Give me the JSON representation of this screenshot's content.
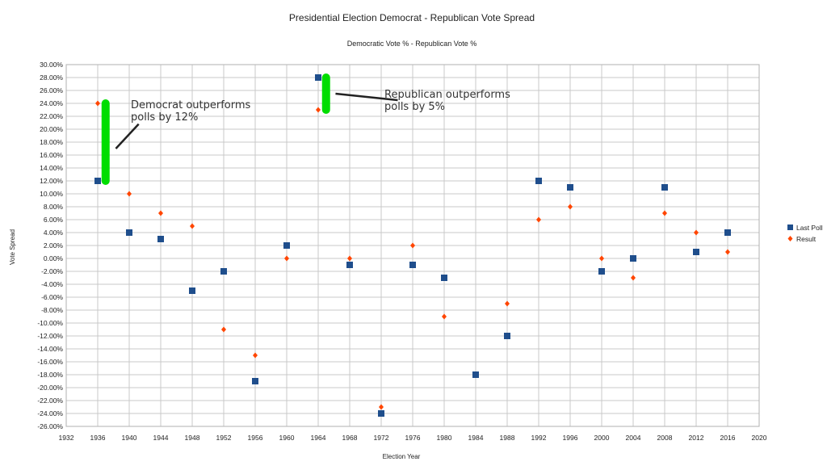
{
  "chart_data": {
    "type": "scatter",
    "title": "Presidential Election Democrat - Republican Vote Spread",
    "subtitle": "Democratic Vote % - Republican Vote %",
    "xlabel": "Election Year",
    "ylabel": "Vote Spread",
    "xlim": [
      1932,
      2020
    ],
    "xticks": [
      "1932",
      "1936",
      "1940",
      "1944",
      "1948",
      "1952",
      "1956",
      "1960",
      "1964",
      "1968",
      "1972",
      "1976",
      "1980",
      "1984",
      "1988",
      "1992",
      "1996",
      "2000",
      "2004",
      "2008",
      "2012",
      "2016",
      "2020"
    ],
    "ylim": [
      -26,
      30
    ],
    "yticks": [
      "30.00%",
      "28.00%",
      "26.00%",
      "24.00%",
      "22.00%",
      "20.00%",
      "18.00%",
      "16.00%",
      "14.00%",
      "12.00%",
      "10.00%",
      "8.00%",
      "6.00%",
      "4.00%",
      "2.00%",
      "0.00%",
      "-2.00%",
      "-4.00%",
      "-6.00%",
      "-8.00%",
      "-10.00%",
      "-12.00%",
      "-14.00%",
      "-16.00%",
      "-18.00%",
      "-20.00%",
      "-22.00%",
      "-24.00%",
      "-26.00%"
    ],
    "grid": true,
    "legend_position": "right",
    "x": [
      1936,
      1940,
      1944,
      1948,
      1952,
      1956,
      1960,
      1964,
      1968,
      1972,
      1976,
      1980,
      1984,
      1988,
      1992,
      1996,
      2000,
      2004,
      2008,
      2012,
      2016
    ],
    "series": [
      {
        "name": "Last Poll",
        "color": "#1f4e8c",
        "marker": "square",
        "values": [
          12,
          4,
          3,
          -5,
          -2,
          -19,
          2,
          28,
          -1,
          -24,
          -1,
          -3,
          -18,
          -12,
          12,
          11,
          -2,
          0,
          11,
          1,
          4
        ]
      },
      {
        "name": "Result",
        "color": "#ff4500",
        "marker": "diamond",
        "values": [
          24,
          10,
          7,
          5,
          -11,
          -15,
          0,
          23,
          0,
          -23,
          2,
          -9,
          null,
          -7,
          6,
          8,
          0,
          -3,
          7,
          4,
          1
        ]
      }
    ],
    "annotations": [
      {
        "text_lines": [
          "Democrat outperforms",
          "polls by 12%"
        ],
        "bar_x": 1937,
        "bar_from": 12,
        "bar_to": 24,
        "bar_color": "#00dd00"
      },
      {
        "text_lines": [
          "Republican outperforms",
          "polls by 5%"
        ],
        "bar_x": 1965,
        "bar_from": 23,
        "bar_to": 28,
        "bar_color": "#00dd00"
      }
    ]
  }
}
